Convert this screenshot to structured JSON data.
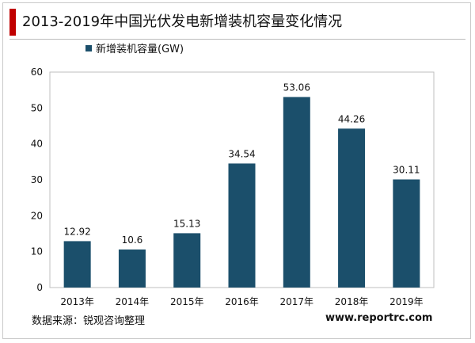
{
  "title": "2013-2019年中国光伏发电新增装机容量变化情况",
  "source_text": "数据来源：锐观咨询整理",
  "website": "www.reportrc.com",
  "colors": {
    "bar": "#1b4f6b",
    "title_accent": "#c00000"
  },
  "chart_data": {
    "type": "bar",
    "categories": [
      "2013年",
      "2014年",
      "2015年",
      "2016年",
      "2017年",
      "2018年",
      "2019年"
    ],
    "series": [
      {
        "name": "新增装机容量(GW)",
        "values": [
          12.92,
          10.6,
          15.13,
          34.54,
          53.06,
          44.26,
          30.11
        ]
      }
    ],
    "data_labels": [
      "12.92",
      "10.6",
      "15.13",
      "34.54",
      "53.06",
      "44.26",
      "30.11"
    ],
    "title": "",
    "xlabel": "",
    "ylabel": "",
    "ylim": [
      0,
      60
    ],
    "yticks": [
      0,
      10,
      20,
      30,
      40,
      50,
      60
    ],
    "grid": false,
    "legend": "top-left"
  }
}
